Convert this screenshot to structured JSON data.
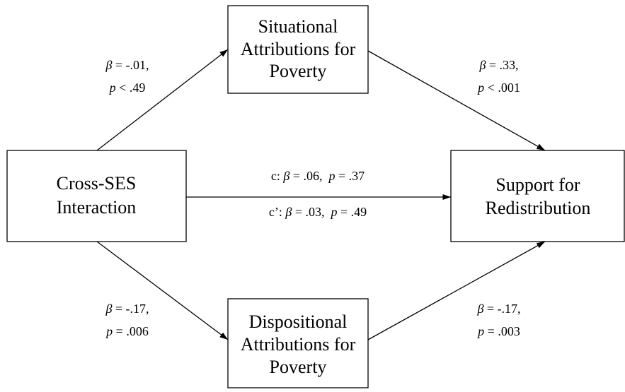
{
  "nodes": [
    {
      "lines": [
        "Cross-SES",
        "Interaction"
      ]
    },
    {
      "lines": [
        "Situational",
        "Attributions for",
        "Poverty"
      ]
    },
    {
      "lines": [
        "Dispositional",
        "Attributions for",
        "Poverty"
      ]
    },
    {
      "lines": [
        "Support for",
        "Redistribution"
      ]
    }
  ],
  "edges": [
    {
      "lines": [
        "β = -.01,",
        "p < .49"
      ]
    },
    {
      "lines": [
        "β = .33,",
        "p < .001"
      ]
    },
    {
      "lines": [
        "c: β = .06,  p = .37",
        "c’: β = .03,  p = .49"
      ]
    },
    {
      "lines": [
        "β = -.17,",
        "p = .006"
      ]
    },
    {
      "lines": [
        "β = -.17,",
        "p = .003"
      ]
    }
  ]
}
